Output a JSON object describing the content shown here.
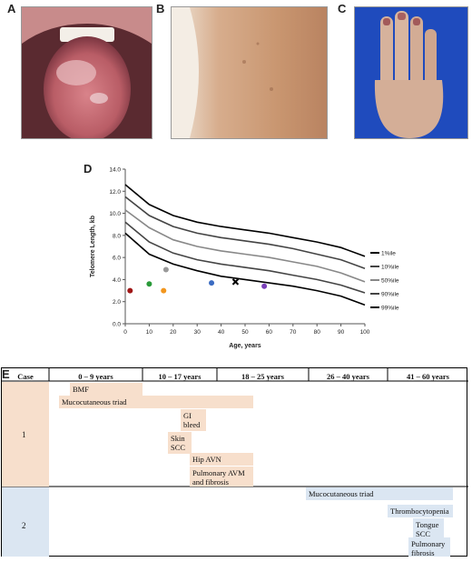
{
  "panels": {
    "a": "A",
    "b": "B",
    "c": "C",
    "d": "D",
    "e": "E"
  },
  "photos": {
    "a": "tongue-photo",
    "b": "skin-photo",
    "c": "hand-photo"
  },
  "colors": {
    "case1": "#f7dfcc",
    "case2": "#dbe6f2",
    "photo_a_bg": "#7a3540",
    "photo_b_bg": "#cfa080",
    "photo_c_bg": "#1f4bbd"
  },
  "chart_data": {
    "type": "line",
    "xlabel": "Age, years",
    "ylabel": "Telomere Length, kb",
    "xlim": [
      0,
      100
    ],
    "ylim": [
      0,
      14
    ],
    "x_ticks": [
      "0",
      "10",
      "20",
      "30",
      "40",
      "50",
      "60",
      "70",
      "80",
      "90",
      "100"
    ],
    "y_ticks": [
      "0.0",
      "2.0",
      "4.0",
      "6.0",
      "8.0",
      "10.0",
      "12.0",
      "14.0"
    ],
    "x": [
      0,
      10,
      20,
      30,
      40,
      50,
      60,
      70,
      80,
      90,
      100
    ],
    "series": [
      {
        "name": "1%ile",
        "color": "#000000",
        "values": [
          12.6,
          10.8,
          9.8,
          9.2,
          8.8,
          8.5,
          8.2,
          7.8,
          7.4,
          6.9,
          6.1
        ]
      },
      {
        "name": "10%ile",
        "color": "#444444",
        "values": [
          11.5,
          9.8,
          8.8,
          8.2,
          7.8,
          7.5,
          7.2,
          6.8,
          6.3,
          5.8,
          5.0
        ]
      },
      {
        "name": "50%ile",
        "color": "#888888",
        "values": [
          10.3,
          8.7,
          7.6,
          7.0,
          6.6,
          6.3,
          6.0,
          5.6,
          5.2,
          4.6,
          3.8
        ]
      },
      {
        "name": "90%ile",
        "color": "#444444",
        "values": [
          9.2,
          7.4,
          6.4,
          5.8,
          5.4,
          5.1,
          4.8,
          4.4,
          4.0,
          3.5,
          2.8
        ]
      },
      {
        "name": "99%ile",
        "color": "#000000",
        "values": [
          8.2,
          6.3,
          5.4,
          4.8,
          4.3,
          4.0,
          3.7,
          3.4,
          3.0,
          2.5,
          1.7
        ]
      }
    ],
    "points": [
      {
        "x": 2,
        "y": 3.0,
        "color": "#a01717",
        "marker": "dot"
      },
      {
        "x": 10,
        "y": 3.6,
        "color": "#2a9a3a",
        "marker": "dot"
      },
      {
        "x": 16,
        "y": 3.0,
        "color": "#f2961e",
        "marker": "dot"
      },
      {
        "x": 17,
        "y": 4.9,
        "color": "#999999",
        "marker": "dot"
      },
      {
        "x": 36,
        "y": 3.7,
        "color": "#3a6bc2",
        "marker": "dot"
      },
      {
        "x": 46,
        "y": 3.8,
        "color": "#000000",
        "marker": "x"
      },
      {
        "x": 58,
        "y": 3.4,
        "color": "#7a3fb8",
        "marker": "dot"
      }
    ],
    "grid": false,
    "legend": "right"
  },
  "timeline": {
    "case_header": "Case",
    "columns": [
      "0 – 9 years",
      "10 – 17 years",
      "18 – 25 years",
      "26 – 40 years",
      "41 – 60 years"
    ],
    "rows": [
      {
        "case": "1",
        "events": [
          "BMF",
          "Mucocutaneous triad",
          "GI\nbleed",
          "Skin\nSCC",
          "Hip AVN",
          "Pulmonary AVM\nand fibrosis"
        ]
      },
      {
        "case": "2",
        "events": [
          "Mucocutaneous triad",
          "Thrombocytopenia",
          "Tongue\nSCC",
          "Pulmonary\nfibrosis"
        ]
      }
    ]
  }
}
